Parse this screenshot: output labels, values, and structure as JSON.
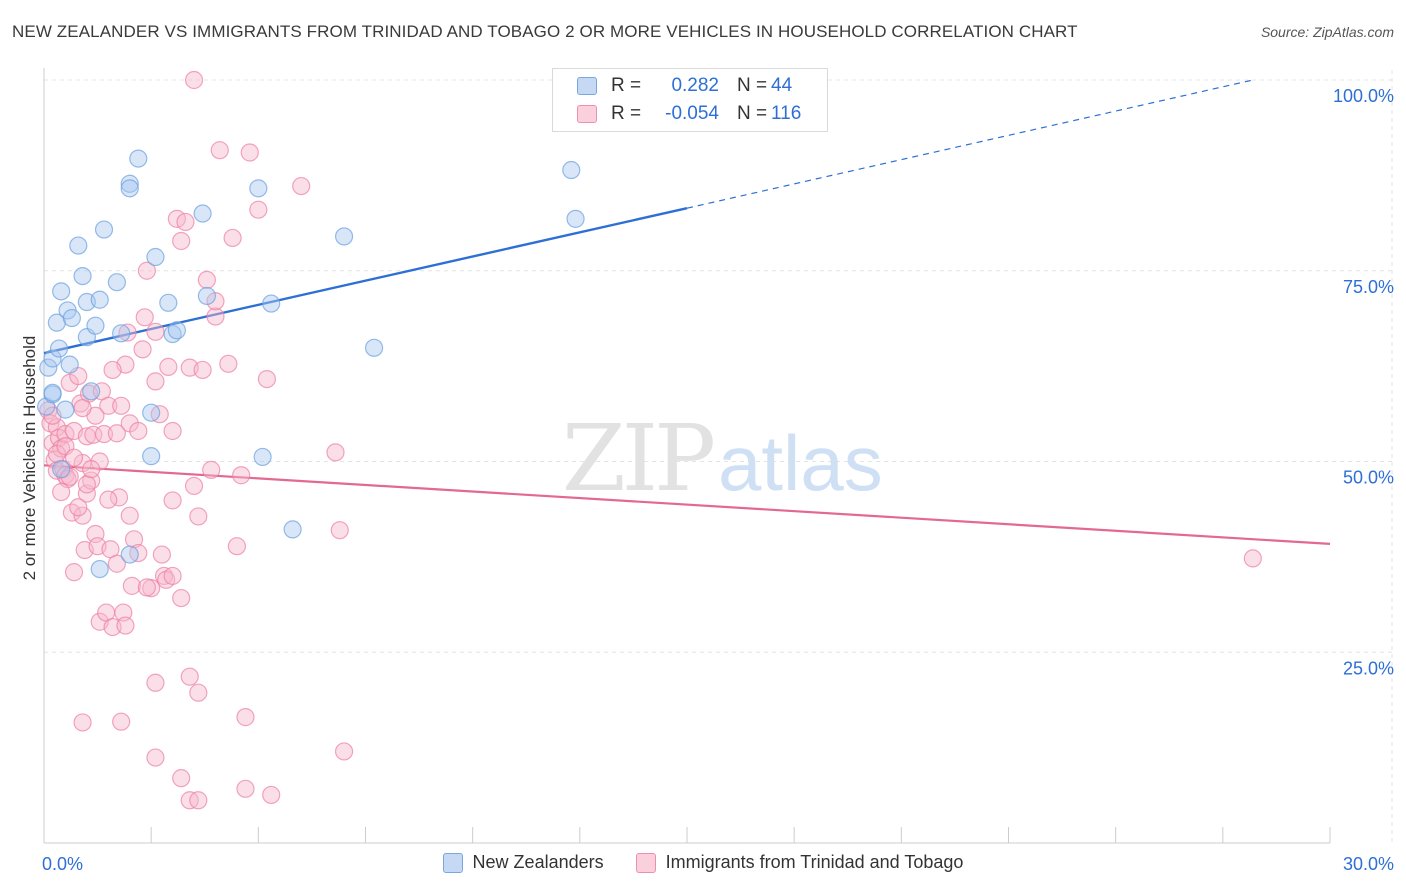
{
  "title": "NEW ZEALANDER VS IMMIGRANTS FROM TRINIDAD AND TOBAGO 2 OR MORE VEHICLES IN HOUSEHOLD CORRELATION CHART",
  "source": "Source: ZipAtlas.com",
  "watermark": {
    "zip": "ZIP",
    "atlas": "atlas"
  },
  "legend_stats": [
    {
      "r_label": "R =",
      "r_value": "0.282",
      "n_label": "N =",
      "n_value": "44",
      "color": "#a9c8f0"
    },
    {
      "r_label": "R =",
      "r_value": "-0.054",
      "n_label": "N =",
      "n_value": "116",
      "color": "#f6b8cb"
    }
  ],
  "chart_data": {
    "type": "scatter",
    "ylabel": "2 or more Vehicles in Household",
    "xlabel": "",
    "xlim": [
      0,
      30
    ],
    "ylim": [
      0,
      100
    ],
    "x_tick_labels": [
      {
        "value": 0,
        "label": "0.0%"
      },
      {
        "value": 30,
        "label": "30.0%"
      }
    ],
    "y_tick_labels": [
      {
        "value": 25,
        "label": "25.0%"
      },
      {
        "value": 50,
        "label": "50.0%"
      },
      {
        "value": 75,
        "label": "75.0%"
      },
      {
        "value": 100,
        "label": "100.0%"
      }
    ],
    "grid": true,
    "series": [
      {
        "name": "New Zealanders",
        "color": "#6a9fe0",
        "fill": "#a9c8f0",
        "trend": {
          "x0": 0,
          "y0": 64.2,
          "x1": 15,
          "y1": 83.2,
          "dash_to_x": 28.2,
          "dash_to_y": 100
        },
        "points": [
          [
            0.05,
            57.2
          ],
          [
            0.1,
            62.3
          ],
          [
            0.2,
            63.5
          ],
          [
            0.2,
            58.8
          ],
          [
            0.3,
            68.2
          ],
          [
            0.35,
            64.8
          ],
          [
            0.4,
            72.3
          ],
          [
            0.5,
            56.8
          ],
          [
            0.55,
            69.8
          ],
          [
            0.6,
            62.7
          ],
          [
            0.65,
            68.8
          ],
          [
            0.8,
            78.3
          ],
          [
            0.9,
            74.3
          ],
          [
            1.0,
            70.9
          ],
          [
            1.0,
            66.3
          ],
          [
            1.1,
            59.2
          ],
          [
            1.2,
            67.8
          ],
          [
            1.3,
            71.2
          ],
          [
            1.4,
            80.4
          ],
          [
            1.7,
            73.5
          ],
          [
            1.8,
            66.8
          ],
          [
            2.0,
            86.4
          ],
          [
            2.0,
            85.8
          ],
          [
            2.2,
            89.7
          ],
          [
            2.5,
            56.4
          ],
          [
            2.5,
            50.7
          ],
          [
            2.6,
            76.8
          ],
          [
            2.9,
            70.8
          ],
          [
            3.0,
            66.7
          ],
          [
            3.1,
            67.2
          ],
          [
            3.7,
            82.5
          ],
          [
            3.8,
            71.7
          ],
          [
            5.0,
            85.8
          ],
          [
            5.1,
            50.6
          ],
          [
            5.3,
            70.7
          ],
          [
            5.8,
            41.1
          ],
          [
            7.0,
            79.5
          ],
          [
            7.7,
            64.9
          ],
          [
            12.3,
            88.2
          ],
          [
            12.4,
            81.8
          ],
          [
            2.0,
            37.8
          ],
          [
            1.3,
            35.9
          ],
          [
            0.2,
            59.0
          ],
          [
            0.4,
            49.0
          ]
        ]
      },
      {
        "name": "Immigrants from Trinidad and Tobago",
        "color": "#ee7fa3",
        "fill": "#f6b8cb",
        "trend": {
          "x0": 0,
          "y0": 49.5,
          "x1": 30,
          "y1": 39.2
        },
        "points": [
          [
            0.1,
            56.7
          ],
          [
            0.15,
            55.0
          ],
          [
            0.2,
            52.4
          ],
          [
            0.25,
            50.2
          ],
          [
            0.3,
            48.8
          ],
          [
            0.3,
            54.5
          ],
          [
            0.35,
            53.1
          ],
          [
            0.4,
            51.7
          ],
          [
            0.45,
            49.0
          ],
          [
            0.5,
            53.6
          ],
          [
            0.5,
            48.2
          ],
          [
            0.55,
            47.7
          ],
          [
            0.6,
            60.3
          ],
          [
            0.65,
            43.3
          ],
          [
            0.7,
            54.0
          ],
          [
            0.7,
            35.5
          ],
          [
            0.8,
            61.2
          ],
          [
            0.85,
            57.6
          ],
          [
            0.9,
            49.8
          ],
          [
            0.9,
            42.9
          ],
          [
            0.95,
            38.4
          ],
          [
            1.0,
            53.3
          ],
          [
            1.0,
            45.8
          ],
          [
            1.05,
            58.9
          ],
          [
            1.1,
            47.5
          ],
          [
            1.15,
            53.5
          ],
          [
            1.2,
            40.5
          ],
          [
            1.25,
            38.9
          ],
          [
            1.3,
            50.0
          ],
          [
            1.3,
            29.0
          ],
          [
            1.35,
            59.2
          ],
          [
            1.4,
            53.6
          ],
          [
            1.45,
            30.2
          ],
          [
            1.5,
            57.3
          ],
          [
            1.55,
            38.5
          ],
          [
            1.6,
            28.3
          ],
          [
            1.7,
            36.6
          ],
          [
            1.7,
            53.7
          ],
          [
            1.75,
            45.3
          ],
          [
            1.8,
            57.3
          ],
          [
            1.85,
            30.2
          ],
          [
            1.9,
            62.7
          ],
          [
            1.95,
            66.9
          ],
          [
            2.0,
            55.0
          ],
          [
            2.0,
            42.9
          ],
          [
            2.05,
            33.7
          ],
          [
            2.1,
            39.8
          ],
          [
            2.2,
            54.0
          ],
          [
            2.3,
            64.7
          ],
          [
            2.35,
            68.9
          ],
          [
            2.4,
            75.0
          ],
          [
            2.5,
            33.4
          ],
          [
            2.6,
            60.5
          ],
          [
            2.7,
            56.2
          ],
          [
            2.75,
            37.8
          ],
          [
            2.8,
            35.0
          ],
          [
            2.85,
            34.5
          ],
          [
            2.9,
            62.4
          ],
          [
            3.0,
            44.9
          ],
          [
            3.0,
            54.0
          ],
          [
            3.1,
            81.8
          ],
          [
            3.2,
            78.9
          ],
          [
            3.3,
            81.4
          ],
          [
            3.4,
            62.3
          ],
          [
            3.5,
            46.8
          ],
          [
            3.6,
            42.8
          ],
          [
            3.7,
            62.0
          ],
          [
            3.8,
            73.8
          ],
          [
            3.9,
            48.9
          ],
          [
            4.0,
            69.0
          ],
          [
            4.1,
            90.8
          ],
          [
            4.3,
            62.8
          ],
          [
            4.4,
            79.3
          ],
          [
            4.5,
            38.9
          ],
          [
            4.6,
            48.2
          ],
          [
            4.8,
            90.5
          ],
          [
            5.0,
            83.0
          ],
          [
            5.2,
            60.8
          ],
          [
            6.0,
            86.1
          ],
          [
            6.9,
            41.0
          ],
          [
            6.8,
            51.2
          ],
          [
            0.9,
            15.8
          ],
          [
            1.8,
            15.9
          ],
          [
            2.6,
            21.0
          ],
          [
            2.6,
            11.2
          ],
          [
            3.2,
            8.5
          ],
          [
            3.4,
            5.6
          ],
          [
            3.6,
            5.6
          ],
          [
            3.4,
            21.8
          ],
          [
            3.6,
            19.7
          ],
          [
            4.7,
            7.1
          ],
          [
            4.7,
            16.5
          ],
          [
            5.3,
            6.3
          ],
          [
            7.0,
            12.0
          ],
          [
            3.2,
            32.1
          ],
          [
            3.0,
            35.0
          ],
          [
            0.2,
            56.0
          ],
          [
            0.3,
            51.0
          ],
          [
            0.4,
            46.0
          ],
          [
            0.6,
            48.0
          ],
          [
            0.8,
            44.0
          ],
          [
            1.0,
            47.0
          ],
          [
            1.5,
            45.0
          ],
          [
            2.2,
            38.0
          ],
          [
            2.4,
            33.5
          ],
          [
            1.9,
            28.5
          ],
          [
            0.5,
            52.0
          ],
          [
            0.7,
            50.5
          ],
          [
            3.5,
            100.0
          ],
          [
            28.2,
            37.3
          ],
          [
            4.0,
            71.0
          ],
          [
            1.2,
            56.0
          ],
          [
            0.9,
            57.0
          ],
          [
            1.6,
            62.0
          ],
          [
            2.6,
            67.0
          ],
          [
            1.1,
            49.0
          ]
        ]
      }
    ]
  }
}
